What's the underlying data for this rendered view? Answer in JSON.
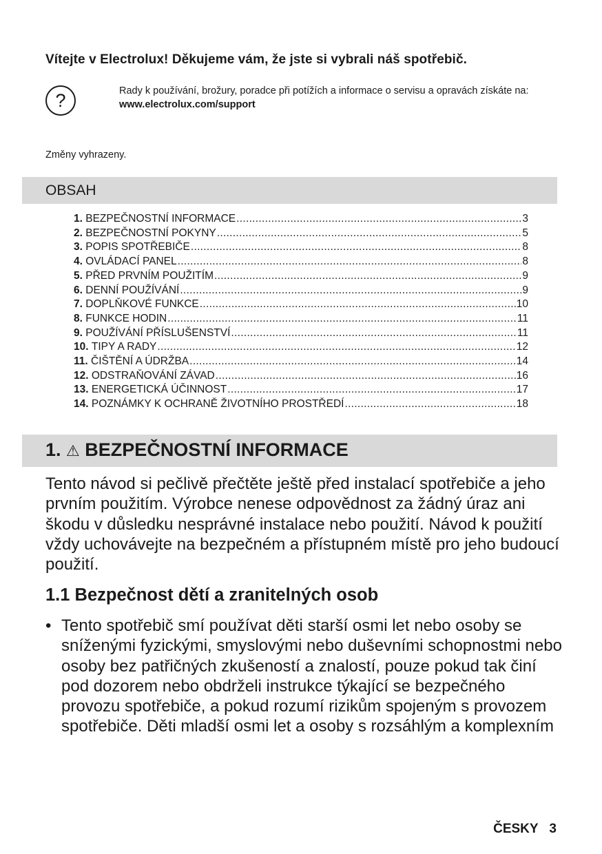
{
  "welcome": "Vítejte v Electrolux! Děkujeme vám, že jste si vybrali náš spotřebič.",
  "help": {
    "icon": "question-circle-icon",
    "icon_glyph": "?",
    "text": "Rady k používání, brožury, poradce při potížích a informace o servisu a opravách získáte na:",
    "url": "www.electrolux.com/support"
  },
  "changes": "Změny vyhrazeny.",
  "toc": {
    "title": "OBSAH",
    "items": [
      {
        "num": "1.",
        "label": "BEZPEČNOSTNÍ INFORMACE",
        "page": "3"
      },
      {
        "num": "2.",
        "label": "BEZPEČNOSTNÍ POKYNY",
        "page": "5"
      },
      {
        "num": "3.",
        "label": "POPIS SPOTŘEBIČE",
        "page": "8"
      },
      {
        "num": "4.",
        "label": "OVLÁDACÍ PANEL",
        "page": "8"
      },
      {
        "num": "5.",
        "label": "PŘED PRVNÍM POUŽITÍM",
        "page": "9"
      },
      {
        "num": "6.",
        "label": "DENNÍ POUŽÍVÁNÍ",
        "page": "9"
      },
      {
        "num": "7.",
        "label": "DOPLŇKOVÉ FUNKCE",
        "page": "10"
      },
      {
        "num": "8.",
        "label": "FUNKCE HODIN",
        "page": "11"
      },
      {
        "num": "9.",
        "label": "POUŽÍVÁNÍ PŘÍSLUŠENSTVÍ",
        "page": "11"
      },
      {
        "num": "10.",
        "label": "TIPY A RADY",
        "page": "12"
      },
      {
        "num": "11.",
        "label": "ČIŠTĚNÍ A ÚDRŽBA",
        "page": "14"
      },
      {
        "num": "12.",
        "label": "ODSTRAŇOVÁNÍ ZÁVAD",
        "page": "16"
      },
      {
        "num": "13.",
        "label": "ENERGETICKÁ ÚČINNOST",
        "page": "17"
      },
      {
        "num": "14.",
        "label": "POZNÁMKY K OCHRANĚ ŽIVOTNÍHO PROSTŘEDÍ",
        "page": "18"
      }
    ]
  },
  "section1": {
    "num": "1.",
    "warning_icon": "warning-triangle-icon",
    "title": "BEZPEČNOSTNÍ INFORMACE",
    "intro": "Tento návod si pečlivě přečtěte ještě před instalací spotřebiče a jeho prvním použitím. Výrobce nenese odpovědnost za žádný úraz ani škodu v důsledku nesprávné instalace nebo použití. Návod k použití vždy uchovávejte na bezpečném a přístupném místě pro jeho budoucí použití.",
    "subsection_title": "1.1 Bezpečnost dětí a zranitelných osob",
    "bullets": [
      "Tento spotřebič smí používat děti starší osmi let nebo osoby se sníženými fyzickými, smyslovými nebo duševními schopnostmi nebo osoby bez patřičných zkušeností a znalostí, pouze pokud tak činí pod dozorem nebo obdrželi instrukce týkající se bezpečného provozu spotřebiče, a pokud rozumí rizikům spojeným s provozem spotřebiče. Děti mladší osmi let a osoby s rozsáhlým a komplexním"
    ]
  },
  "footer": {
    "language": "ČESKY",
    "page": "3"
  }
}
